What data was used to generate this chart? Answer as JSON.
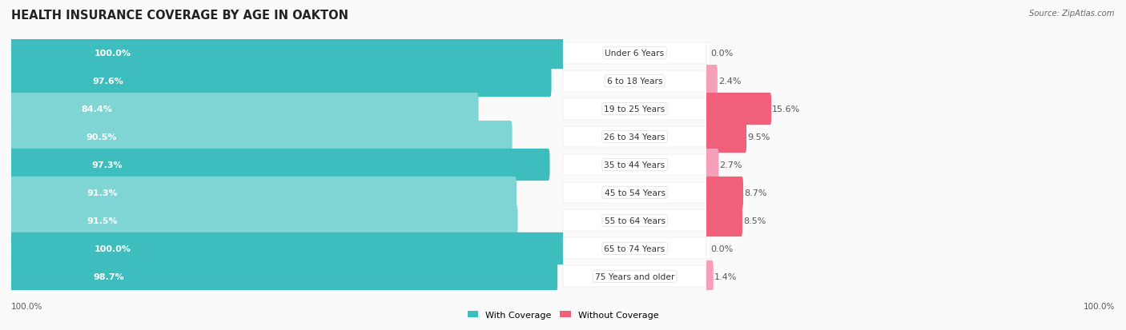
{
  "title": "HEALTH INSURANCE COVERAGE BY AGE IN OAKTON",
  "source": "Source: ZipAtlas.com",
  "categories": [
    "Under 6 Years",
    "6 to 18 Years",
    "19 to 25 Years",
    "26 to 34 Years",
    "35 to 44 Years",
    "45 to 54 Years",
    "55 to 64 Years",
    "65 to 74 Years",
    "75 Years and older"
  ],
  "with_coverage": [
    100.0,
    97.6,
    84.4,
    90.5,
    97.3,
    91.3,
    91.5,
    100.0,
    98.7
  ],
  "without_coverage": [
    0.0,
    2.4,
    15.6,
    9.5,
    2.7,
    8.7,
    8.5,
    0.0,
    1.4
  ],
  "color_with_dark": "#3DBDBD",
  "color_with_light": "#7FD4D4",
  "color_without_dark": "#F0607A",
  "color_without_light": "#F5A0B8",
  "bg_row": "#F2F2F2",
  "bg_fig": "#FAFAFA",
  "title_fontsize": 10.5,
  "label_fontsize": 8,
  "tick_fontsize": 7.5,
  "legend_fontsize": 8
}
